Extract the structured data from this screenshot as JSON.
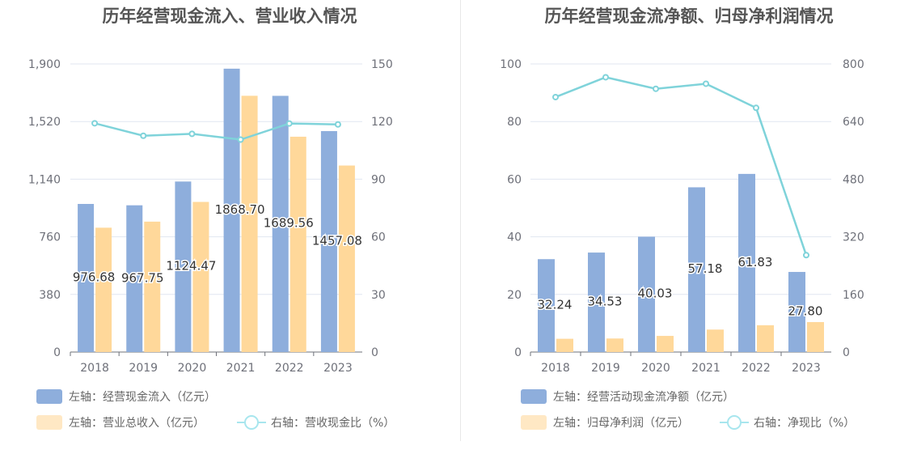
{
  "chart_data": [
    {
      "type": "bar",
      "title": "历年经营现金流入、营业收入情况",
      "categories": [
        "2018",
        "2019",
        "2020",
        "2021",
        "2022",
        "2023"
      ],
      "left_axis": {
        "ticks": [
          "0",
          "380",
          "760",
          "1,140",
          "1,520",
          "1,900"
        ],
        "ylim": [
          0,
          1900
        ]
      },
      "right_axis": {
        "ticks": [
          "0",
          "30",
          "60",
          "90",
          "120",
          "150"
        ],
        "ylim": [
          0,
          150
        ]
      },
      "series": [
        {
          "name": "左轴：经营现金流入（亿元）",
          "type": "bar",
          "axis": "left",
          "color": "#8eaedc",
          "values": [
            976.68,
            967.75,
            1124.47,
            1868.7,
            1689.56,
            1457.08
          ],
          "labels": [
            "976.68",
            "967.75",
            "1124.47",
            "1868.70",
            "1689.56",
            "1457.08"
          ]
        },
        {
          "name": "左轴：营业总收入（亿元）",
          "type": "bar",
          "axis": "left",
          "color": "#ffd89a",
          "values": [
            820,
            860,
            990,
            1690,
            1420,
            1230
          ]
        },
        {
          "name": "右轴：营收现金比（%）",
          "type": "line",
          "axis": "right",
          "color": "#7fd3da",
          "values": [
            119.1,
            112.6,
            113.6,
            110.6,
            119.0,
            118.5
          ]
        }
      ]
    },
    {
      "type": "bar",
      "title": "历年经营现金流净额、归母净利润情况",
      "categories": [
        "2018",
        "2019",
        "2020",
        "2021",
        "2022",
        "2023"
      ],
      "left_axis": {
        "ticks": [
          "0",
          "20",
          "40",
          "60",
          "80",
          "100"
        ],
        "ylim": [
          0,
          100
        ]
      },
      "right_axis": {
        "ticks": [
          "0",
          "160",
          "320",
          "480",
          "640",
          "800"
        ],
        "ylim": [
          0,
          800
        ]
      },
      "series": [
        {
          "name": "左轴：经营活动现金流净额（亿元）",
          "type": "bar",
          "axis": "left",
          "color": "#8eaedc",
          "values": [
            32.24,
            34.53,
            40.03,
            57.18,
            61.83,
            27.8
          ],
          "labels": [
            "32.24",
            "34.53",
            "40.03",
            "57.18",
            "61.83",
            "27.80"
          ]
        },
        {
          "name": "左轴：归母净利润（亿元）",
          "type": "bar",
          "axis": "left",
          "color": "#ffd89a",
          "values": [
            4.6,
            4.7,
            5.6,
            7.8,
            9.3,
            10.4
          ]
        },
        {
          "name": "右轴：净现比（%）",
          "type": "line",
          "axis": "right",
          "color": "#7fd3da",
          "values": [
            708,
            763,
            731,
            745,
            678,
            269
          ]
        }
      ]
    }
  ]
}
